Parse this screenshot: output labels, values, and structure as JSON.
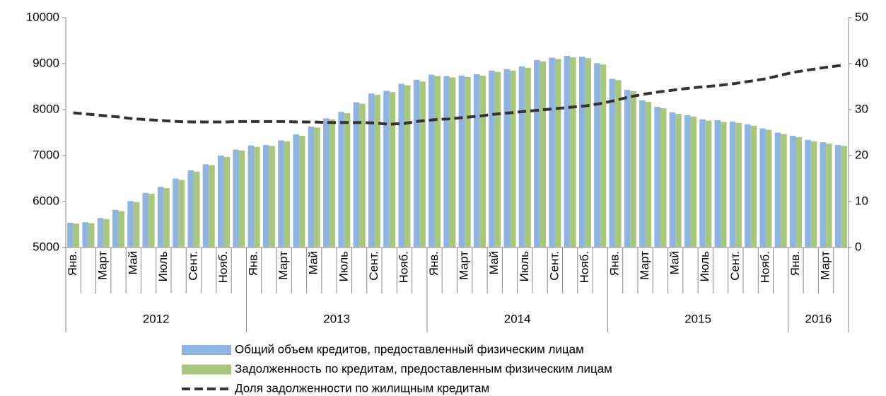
{
  "chart_data": {
    "type": "bar",
    "categories": [
      "Янв.",
      null,
      "Март",
      null,
      "Май",
      null,
      "Июль",
      null,
      "Сент.",
      null,
      "Нояб.",
      null,
      "Янв.",
      null,
      "Март",
      null,
      "Май",
      null,
      "Июль",
      null,
      "Сент.",
      null,
      "Нояб.",
      null,
      "Янв.",
      null,
      "Март",
      null,
      "Май",
      null,
      "Июль",
      null,
      "Сент.",
      null,
      "Нояб.",
      null,
      "Янв.",
      null,
      "Март",
      null,
      "Май",
      null,
      "Июль",
      null,
      "Сент.",
      null,
      "Нояб.",
      null,
      "Янв.",
      null,
      "Март",
      null
    ],
    "groups": [
      "2012",
      "2013",
      "2014",
      "2015",
      "2016"
    ],
    "group_sizes": [
      12,
      12,
      12,
      12,
      4
    ],
    "ylim": [
      5000,
      10000
    ],
    "yticks": [
      5000,
      6000,
      7000,
      8000,
      9000,
      10000
    ],
    "y2lim": [
      0,
      50
    ],
    "y2ticks": [
      0,
      10,
      20,
      30,
      40,
      50
    ],
    "series": [
      {
        "name": "Общий объем кредитов, предоставленный физическим лицам",
        "type": "bar",
        "color": "#8db4e2",
        "values": [
          5540,
          5550,
          5640,
          5820,
          6010,
          6190,
          6320,
          6500,
          6680,
          6810,
          7000,
          7130,
          7220,
          7230,
          7330,
          7460,
          7630,
          7810,
          7950,
          8160,
          8350,
          8410,
          8560,
          8650,
          8760,
          8730,
          8740,
          8770,
          8850,
          8880,
          8940,
          9080,
          9130,
          9170,
          9150,
          9010,
          8670,
          8430,
          8200,
          8060,
          7940,
          7880,
          7790,
          7770,
          7740,
          7680,
          7590,
          7500,
          7430,
          7340,
          7290,
          7230
        ]
      },
      {
        "name": "Задолженность по кредитам, предоставленным физическим лицам",
        "type": "bar",
        "color": "#a9c77a",
        "values": [
          5520,
          5530,
          5620,
          5790,
          5990,
          6170,
          6290,
          6470,
          6650,
          6790,
          6970,
          7110,
          7190,
          7210,
          7310,
          7430,
          7610,
          7790,
          7920,
          8130,
          8320,
          8380,
          8530,
          8610,
          8730,
          8700,
          8710,
          8740,
          8820,
          8850,
          8910,
          9050,
          9100,
          9140,
          9120,
          8980,
          8640,
          8400,
          8170,
          8030,
          7910,
          7850,
          7760,
          7730,
          7710,
          7650,
          7560,
          7470,
          7400,
          7310,
          7260,
          7210
        ]
      },
      {
        "name": "Доля задолженности по жилищным кредитам",
        "type": "line",
        "axis": "y2",
        "color": "#333333",
        "values": [
          29.3,
          29.0,
          28.7,
          28.4,
          28.0,
          27.8,
          27.6,
          27.4,
          27.3,
          27.3,
          27.3,
          27.4,
          27.4,
          27.4,
          27.4,
          27.3,
          27.3,
          27.2,
          27.2,
          27.2,
          27.1,
          26.8,
          27.0,
          27.5,
          27.8,
          28.0,
          28.3,
          28.6,
          29.0,
          29.3,
          29.6,
          29.9,
          30.2,
          30.5,
          30.8,
          31.3,
          32.0,
          32.8,
          33.4,
          33.9,
          34.3,
          34.7,
          35.0,
          35.3,
          35.7,
          36.2,
          36.7,
          37.5,
          38.2,
          38.7,
          39.2,
          39.6
        ]
      }
    ]
  }
}
